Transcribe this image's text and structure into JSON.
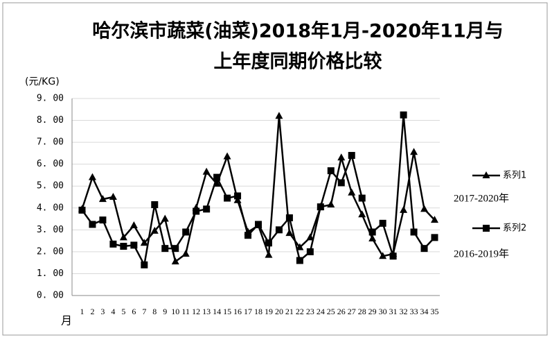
{
  "chart_data": {
    "type": "line",
    "title": [
      "哈尔滨市蔬菜(油菜)2018年1月-2020年11月与",
      "上年度同期价格比较"
    ],
    "y_label": "(元/KG)",
    "x_label": "月",
    "categories": [
      "1",
      "2",
      "3",
      "4",
      "5",
      "6",
      "7",
      "8",
      "9",
      "10",
      "11",
      "12",
      "13",
      "14",
      "15",
      "16",
      "17",
      "18",
      "19",
      "20",
      "21",
      "22",
      "23",
      "24",
      "25",
      "26",
      "27",
      "28",
      "29",
      "30",
      "31",
      "32",
      "33",
      "34",
      "35"
    ],
    "series": [
      {
        "name": "系列1",
        "color": "#000000",
        "marker": "triangle",
        "values": [
          3.95,
          5.4,
          4.4,
          4.5,
          2.65,
          3.2,
          2.4,
          2.95,
          3.5,
          1.55,
          1.9,
          4.0,
          5.65,
          5.1,
          6.35,
          4.35,
          2.9,
          3.2,
          1.85,
          8.2,
          2.85,
          2.2,
          2.65,
          4.05,
          4.15,
          6.3,
          4.7,
          3.7,
          2.6,
          1.8,
          1.9,
          3.9,
          6.55,
          3.95,
          3.45
        ]
      },
      {
        "name": "系列2",
        "color": "#000000",
        "marker": "square",
        "values": [
          3.9,
          3.25,
          3.45,
          2.35,
          2.25,
          2.3,
          1.4,
          4.15,
          2.15,
          2.15,
          2.9,
          3.85,
          3.95,
          5.4,
          4.45,
          4.55,
          2.75,
          3.25,
          2.4,
          3.0,
          3.55,
          1.6,
          2.0,
          4.05,
          5.7,
          5.15,
          6.4,
          4.45,
          2.9,
          3.3,
          1.8,
          8.25,
          2.9,
          2.15,
          2.65
        ]
      }
    ],
    "annotations": [
      "2017-2020年",
      "2016-2019年"
    ],
    "ylim": [
      0,
      9
    ],
    "yticks": [
      {
        "value": 0,
        "label": "0. 00"
      },
      {
        "value": 1,
        "label": "1. 00"
      },
      {
        "value": 2,
        "label": "2. 00"
      },
      {
        "value": 3,
        "label": "3. 00"
      },
      {
        "value": 4,
        "label": "4. 00"
      },
      {
        "value": 5,
        "label": "5. 00"
      },
      {
        "value": 6,
        "label": "6. 00"
      },
      {
        "value": 7,
        "label": "7. 00"
      },
      {
        "value": 8,
        "label": "8. 00"
      },
      {
        "value": 9,
        "label": "9. 00"
      }
    ],
    "grid": true
  }
}
